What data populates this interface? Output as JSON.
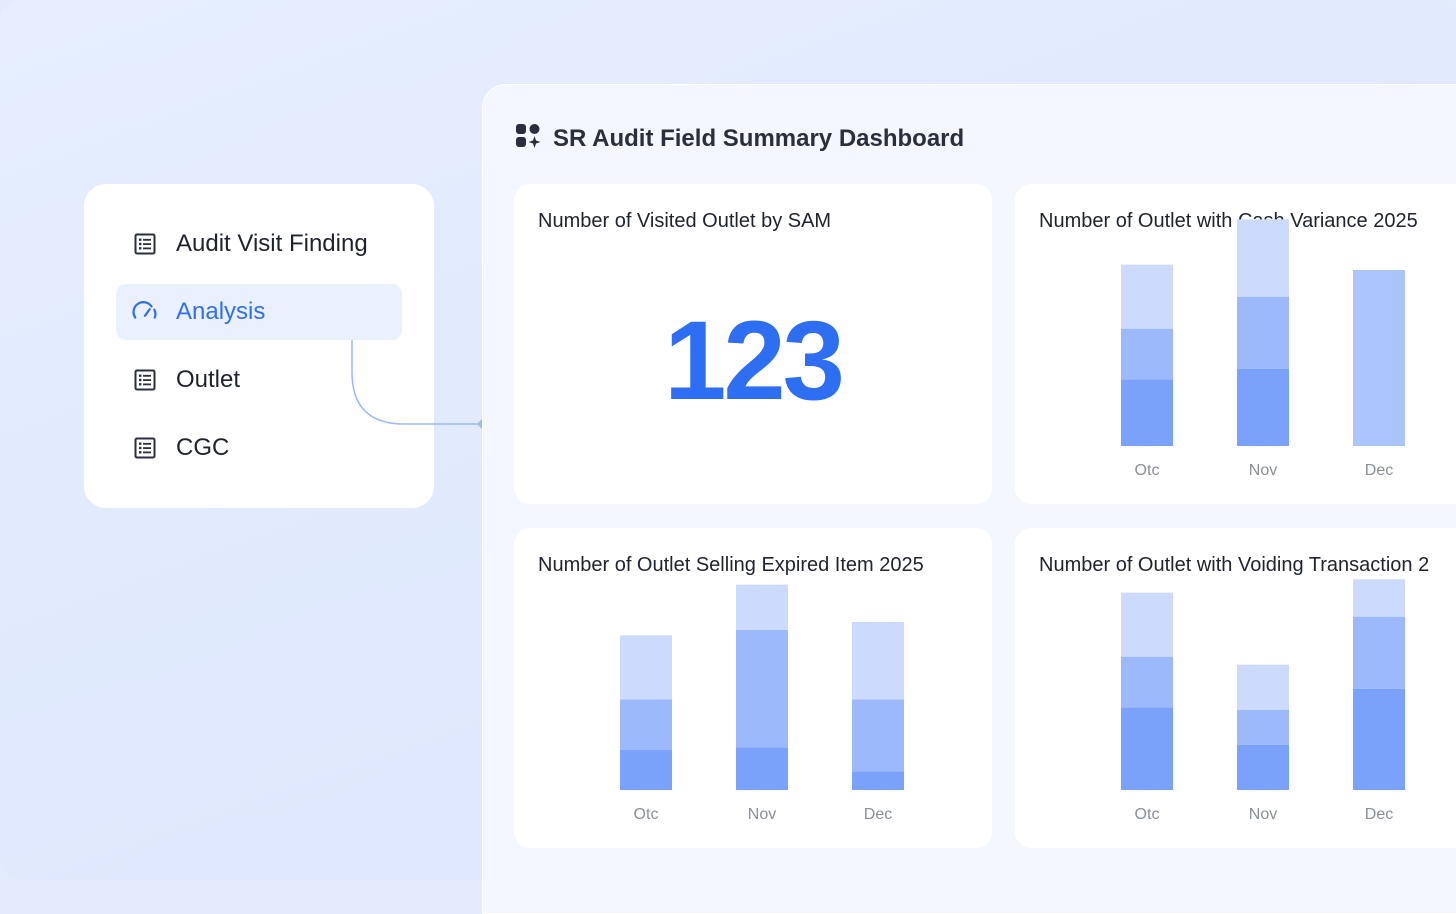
{
  "sidebar": {
    "items": [
      {
        "label": "Audit Visit Finding",
        "icon": "list-icon",
        "active": false
      },
      {
        "label": "Analysis",
        "icon": "gauge-icon",
        "active": true
      },
      {
        "label": "Outlet",
        "icon": "list-icon",
        "active": false
      },
      {
        "label": "CGC",
        "icon": "list-icon",
        "active": false
      }
    ]
  },
  "dashboard": {
    "title": "SR Audit Field Summary Dashboard",
    "icon": "dashboard-grid-icon",
    "cards": [
      {
        "title": "Number of Visited Outlet by SAM",
        "value": "123"
      },
      {
        "title": "Number of Outlet with Cash Variance 2025"
      },
      {
        "title": "Number of Outlet Selling Expired Item 2025"
      },
      {
        "title": "Number of Outlet with Voiding Transaction 2"
      }
    ]
  },
  "colors": {
    "accent": "#2f6ff0",
    "bar_dark": "#7ba2fb",
    "bar_mid": "#9cb9fc",
    "bar_light": "#cbdafd",
    "bar_single": "#aac5fd"
  },
  "chart_data": [
    {
      "type": "bar",
      "stacked": true,
      "categories": [
        "Otc",
        "Nov",
        "Dec"
      ],
      "series": [
        {
          "values": [
            25,
            29,
            0
          ]
        },
        {
          "values": [
            19,
            27,
            0
          ]
        },
        {
          "values": [
            24,
            29,
            0
          ]
        },
        {
          "values": [
            0,
            0,
            66
          ]
        }
      ],
      "ylim": [
        0,
        90
      ]
    },
    {
      "type": "bar",
      "stacked": true,
      "categories": [
        "Otc",
        "Nov",
        "Dec"
      ],
      "series": [
        {
          "values": [
            15,
            16,
            7
          ]
        },
        {
          "values": [
            19,
            44,
            27
          ]
        },
        {
          "values": [
            24,
            17,
            29
          ]
        }
      ],
      "ylim": [
        0,
        90
      ]
    },
    {
      "type": "bar",
      "stacked": true,
      "categories": [
        "Otc",
        "Nov",
        "Dec"
      ],
      "series": [
        {
          "values": [
            31,
            17,
            38
          ]
        },
        {
          "values": [
            19,
            13,
            27
          ]
        },
        {
          "values": [
            24,
            17,
            14
          ]
        }
      ],
      "ylim": [
        0,
        90
      ]
    }
  ]
}
